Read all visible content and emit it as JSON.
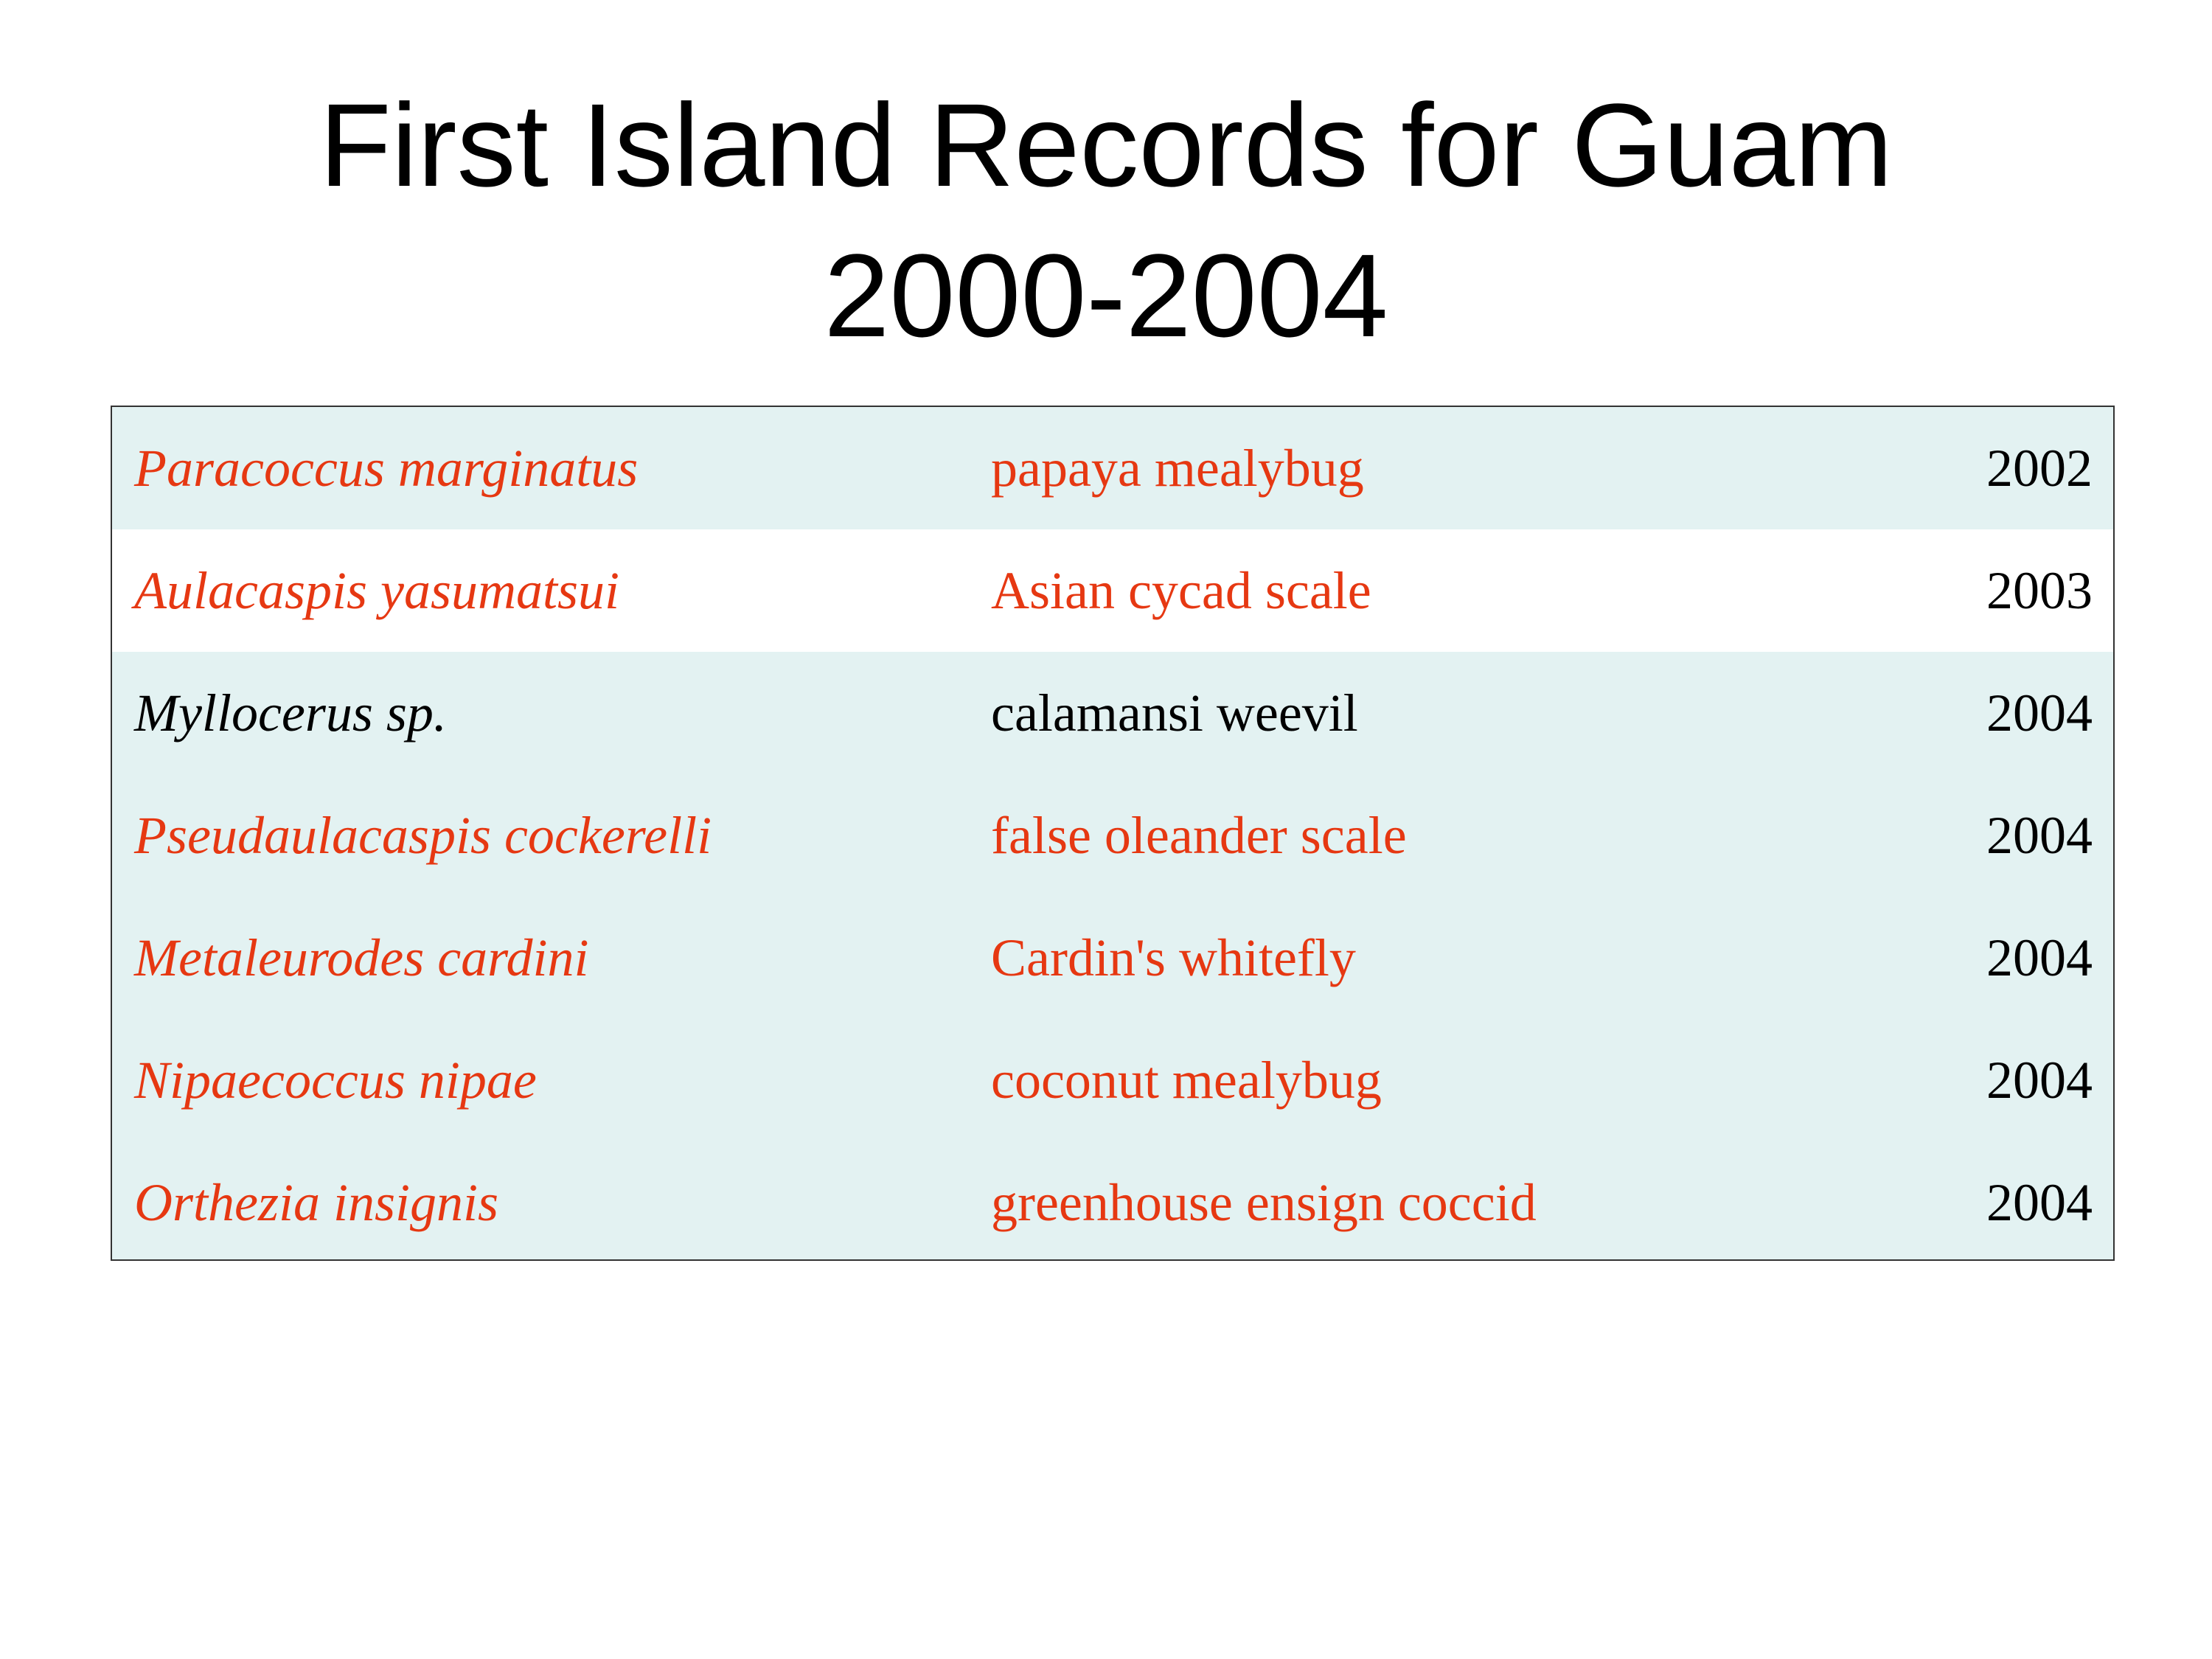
{
  "title": {
    "line1": "First Island Records for Guam",
    "line2": "2000-2004"
  },
  "colors": {
    "highlight": "#e63812",
    "normal": "#000000",
    "table_bg": "#e3f2f2",
    "row_white": "#ffffff"
  },
  "rows": [
    {
      "scientific_name": "Paracoccus marginatus",
      "common_name": "papaya mealybug",
      "year": "2002",
      "color": "#e63812",
      "bg": "#e3f2f2"
    },
    {
      "scientific_name": "Aulacaspis yasumatsui",
      "common_name": "Asian cycad scale",
      "year": "2003",
      "color": "#e63812",
      "bg": "#ffffff"
    },
    {
      "scientific_name": "Myllocerus sp.",
      "common_name": "calamansi weevil",
      "year": "2004",
      "color": "#000000",
      "bg": "#e3f2f2"
    },
    {
      "scientific_name": "Pseudaulacaspis cockerelli",
      "common_name": "false oleander scale",
      "year": "2004",
      "color": "#e63812",
      "bg": "#e3f2f2"
    },
    {
      "scientific_name": "Metaleurodes cardini",
      "common_name": "Cardin's whitefly",
      "year": "2004",
      "color": "#e63812",
      "bg": "#e3f2f2"
    },
    {
      "scientific_name": "Nipaecoccus nipae",
      "common_name": "coconut mealybug",
      "year": "2004",
      "color": "#e63812",
      "bg": "#e3f2f2"
    },
    {
      "scientific_name": "Orthezia insignis",
      "common_name": "greenhouse ensign coccid",
      "year": "2004",
      "color": "#e63812",
      "bg": "#e3f2f2"
    }
  ]
}
